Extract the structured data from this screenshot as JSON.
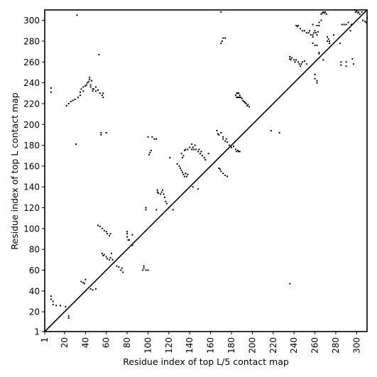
{
  "chart_data": {
    "type": "scatter",
    "xlabel": "Residue index of top L/5 contact map",
    "ylabel": "Residue index of top L contact map",
    "xlim": [
      1,
      310
    ],
    "ylim": [
      1,
      310
    ],
    "x_ticks": [
      1,
      20,
      40,
      60,
      80,
      100,
      120,
      140,
      160,
      180,
      200,
      220,
      240,
      260,
      280,
      300
    ],
    "y_ticks": [
      1,
      20,
      40,
      60,
      80,
      100,
      120,
      140,
      160,
      180,
      200,
      220,
      240,
      260,
      280,
      300
    ],
    "diagonal": true,
    "grid": false,
    "marker_color": "#000000",
    "series": [
      {
        "points": [
          [
            7,
            35
          ],
          [
            7,
            32
          ],
          [
            9,
            30
          ],
          [
            9,
            27
          ],
          [
            12,
            26
          ],
          [
            16,
            26
          ],
          [
            24,
            16
          ],
          [
            24,
            14
          ],
          [
            21,
            25
          ],
          [
            22,
            218
          ],
          [
            24,
            220
          ],
          [
            26,
            222
          ],
          [
            28,
            223
          ],
          [
            30,
            224
          ],
          [
            31,
            181
          ],
          [
            32,
            305
          ],
          [
            33,
            226
          ],
          [
            35,
            228
          ],
          [
            35,
            231
          ],
          [
            36,
            234
          ],
          [
            38,
            232
          ],
          [
            38,
            236
          ],
          [
            40,
            237
          ],
          [
            41,
            238
          ],
          [
            42,
            240
          ],
          [
            43,
            241
          ],
          [
            44,
            243
          ],
          [
            44,
            245
          ],
          [
            45,
            238
          ],
          [
            45,
            236
          ],
          [
            46,
            242
          ],
          [
            47,
            232
          ],
          [
            47,
            234
          ],
          [
            48,
            234
          ],
          [
            50,
            236
          ],
          [
            50,
            232
          ],
          [
            52,
            233
          ],
          [
            53,
            267
          ],
          [
            54,
            230
          ],
          [
            55,
            192
          ],
          [
            55,
            190
          ],
          [
            56,
            228
          ],
          [
            57,
            230
          ],
          [
            57,
            226
          ],
          [
            60,
            192
          ],
          [
            7,
            235
          ],
          [
            7,
            231
          ],
          [
            36,
            49
          ],
          [
            38,
            48
          ],
          [
            39,
            47
          ],
          [
            40,
            51
          ],
          [
            45,
            42
          ],
          [
            47,
            41
          ],
          [
            50,
            42
          ],
          [
            52,
            103
          ],
          [
            54,
            102
          ],
          [
            56,
            100
          ],
          [
            58,
            98
          ],
          [
            60,
            97
          ],
          [
            61,
            95
          ],
          [
            63,
            93
          ],
          [
            64,
            95
          ],
          [
            56,
            76
          ],
          [
            57,
            74
          ],
          [
            58,
            75
          ],
          [
            60,
            73
          ],
          [
            61,
            71
          ],
          [
            63,
            70
          ],
          [
            64,
            72
          ],
          [
            65,
            76
          ],
          [
            66,
            70
          ],
          [
            70,
            64
          ],
          [
            72,
            63
          ],
          [
            74,
            60
          ],
          [
            75,
            62
          ],
          [
            76,
            58
          ],
          [
            80,
            97
          ],
          [
            80,
            95
          ],
          [
            80,
            92
          ],
          [
            81,
            89
          ],
          [
            82,
            89
          ],
          [
            85,
            94
          ],
          [
            85,
            84
          ],
          [
            96,
            64
          ],
          [
            96,
            62
          ],
          [
            98,
            60
          ],
          [
            100,
            60
          ],
          [
            95,
            60
          ],
          [
            98,
            120
          ],
          [
            98,
            118
          ],
          [
            100,
            188
          ],
          [
            101,
            171
          ],
          [
            102,
            173
          ],
          [
            103,
            175
          ],
          [
            104,
            188
          ],
          [
            106,
            186
          ],
          [
            108,
            186
          ],
          [
            108,
            118
          ],
          [
            109,
            135
          ],
          [
            109,
            137
          ],
          [
            110,
            134
          ],
          [
            112,
            133
          ],
          [
            113,
            135
          ],
          [
            114,
            137
          ],
          [
            115,
            133
          ],
          [
            116,
            130
          ],
          [
            117,
            126
          ],
          [
            118,
            124
          ],
          [
            120,
            120
          ],
          [
            121,
            168
          ],
          [
            124,
            118
          ],
          [
            128,
            162
          ],
          [
            130,
            160
          ],
          [
            131,
            158
          ],
          [
            132,
            156
          ],
          [
            133,
            154
          ],
          [
            134,
            152
          ],
          [
            135,
            150
          ],
          [
            136,
            153
          ],
          [
            137,
            150
          ],
          [
            138,
            152
          ],
          [
            132,
            172
          ],
          [
            133,
            168
          ],
          [
            134,
            170
          ],
          [
            135,
            175
          ],
          [
            136,
            176
          ],
          [
            138,
            176
          ],
          [
            140,
            178
          ],
          [
            142,
            181
          ],
          [
            142,
            176
          ],
          [
            143,
            178
          ],
          [
            144,
            176
          ],
          [
            145,
            180
          ],
          [
            146,
            176
          ],
          [
            148,
            174
          ],
          [
            149,
            176
          ],
          [
            150,
            172
          ],
          [
            151,
            174
          ],
          [
            152,
            170
          ],
          [
            154,
            168
          ],
          [
            155,
            166
          ],
          [
            143,
            140
          ],
          [
            148,
            138
          ],
          [
            158,
            172
          ],
          [
            166,
            194
          ],
          [
            167,
            191
          ],
          [
            168,
            190
          ],
          [
            170,
            192
          ],
          [
            172,
            188
          ],
          [
            172,
            186
          ],
          [
            175,
            186
          ],
          [
            174,
            184
          ],
          [
            176,
            183
          ],
          [
            178,
            180
          ],
          [
            180,
            178
          ],
          [
            182,
            179
          ],
          [
            184,
            176
          ],
          [
            185,
            174
          ],
          [
            186,
            175
          ],
          [
            187,
            174
          ],
          [
            188,
            174
          ],
          [
            168,
            158
          ],
          [
            169,
            157
          ],
          [
            170,
            155
          ],
          [
            172,
            153
          ],
          [
            174,
            151
          ],
          [
            176,
            150
          ],
          [
            170,
            278
          ],
          [
            171,
            280
          ],
          [
            172,
            283
          ],
          [
            174,
            283
          ],
          [
            170,
            308
          ],
          [
            184,
            228
          ],
          [
            185,
            230
          ],
          [
            186,
            230
          ],
          [
            187,
            230
          ],
          [
            188,
            228
          ],
          [
            189,
            226
          ],
          [
            190,
            225
          ],
          [
            191,
            223
          ],
          [
            192,
            222
          ],
          [
            193,
            221
          ],
          [
            194,
            220
          ],
          [
            195,
            218
          ],
          [
            196,
            219
          ],
          [
            197,
            217
          ],
          [
            185,
            226
          ],
          [
            186,
            226
          ],
          [
            187,
            226
          ],
          [
            188,
            226
          ],
          [
            218,
            194
          ],
          [
            226,
            192
          ],
          [
            236,
            265
          ],
          [
            236,
            263
          ],
          [
            237,
            262
          ],
          [
            238,
            264
          ],
          [
            240,
            262
          ],
          [
            241,
            260
          ],
          [
            242,
            262
          ],
          [
            244,
            260
          ],
          [
            245,
            258
          ],
          [
            246,
            256
          ],
          [
            247,
            258
          ],
          [
            248,
            260
          ],
          [
            250,
            261
          ],
          [
            252,
            258
          ],
          [
            242,
            295
          ],
          [
            243,
            294
          ],
          [
            244,
            295
          ],
          [
            246,
            292
          ],
          [
            248,
            290
          ],
          [
            250,
            290
          ],
          [
            252,
            288
          ],
          [
            254,
            288
          ],
          [
            255,
            290
          ],
          [
            256,
            286
          ],
          [
            258,
            284
          ],
          [
            259,
            288
          ],
          [
            260,
            290
          ],
          [
            261,
            288
          ],
          [
            262,
            286
          ],
          [
            263,
            289
          ],
          [
            264,
            295
          ],
          [
            264,
            298
          ],
          [
            266,
            300
          ],
          [
            266,
            306
          ],
          [
            267,
            307
          ],
          [
            268,
            308
          ],
          [
            269,
            307
          ],
          [
            270,
            308
          ],
          [
            271,
            306
          ],
          [
            272,
            284
          ],
          [
            273,
            282
          ],
          [
            274,
            280
          ],
          [
            274,
            278
          ],
          [
            272,
            280
          ],
          [
            262,
            295
          ],
          [
            258,
            296
          ],
          [
            258,
            286
          ],
          [
            258,
            278
          ],
          [
            260,
            276
          ],
          [
            262,
            276
          ],
          [
            264,
            269
          ],
          [
            264,
            268
          ],
          [
            268,
            262
          ],
          [
            260,
            248
          ],
          [
            260,
            244
          ],
          [
            262,
            240
          ],
          [
            262,
            242
          ],
          [
            278,
            286
          ],
          [
            284,
            278
          ],
          [
            285,
            257
          ],
          [
            285,
            260
          ],
          [
            286,
            296
          ],
          [
            288,
            296
          ],
          [
            290,
            296
          ],
          [
            290,
            260
          ],
          [
            290,
            256
          ],
          [
            292,
            298
          ],
          [
            294,
            290
          ],
          [
            295,
            296
          ],
          [
            296,
            263
          ],
          [
            297,
            258
          ],
          [
            298,
            310
          ],
          [
            299,
            308
          ],
          [
            300,
            309
          ],
          [
            301,
            307
          ],
          [
            302,
            308
          ],
          [
            303,
            306
          ],
          [
            305,
            308
          ],
          [
            306,
            300
          ],
          [
            308,
            299
          ],
          [
            309,
            298
          ],
          [
            310,
            302
          ],
          [
            236,
            47
          ]
        ]
      }
    ]
  }
}
